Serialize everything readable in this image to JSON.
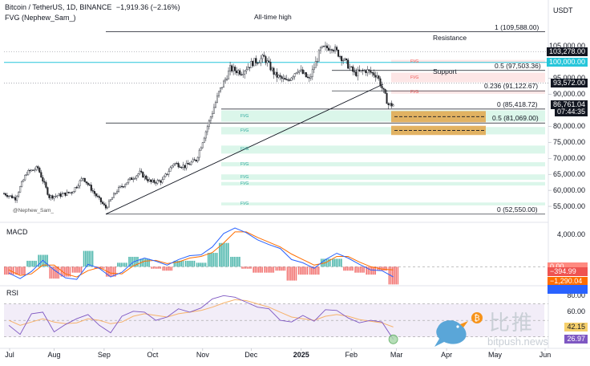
{
  "header": {
    "symbol_line": "Bitcoin / TetherUS, 1D, BINANCE",
    "change": "−1,919.36 (−2.16%)",
    "indicator": "FVG (Nephew_Sam_)",
    "currency": "USDT"
  },
  "colors": {
    "up": "#f2f2f2",
    "down": "#222222",
    "fvg_bull": "#d7f5e8",
    "fvg_bear": "#fde3e3",
    "orange_zone": "#e2a64a",
    "teal_line": "#26c6da",
    "macd_line": "#2962ff",
    "signal_line": "#ff6d00",
    "rsi_line": "#7e57c2",
    "rsi_ma": "#f6b26b"
  },
  "annotations": {
    "ath": "All-time high",
    "resistance": "Resistance",
    "support": "Support",
    "fvg": "FVG",
    "watermark_label": "@Nephew_Sam_"
  },
  "fib_levels": [
    {
      "label": "1 (109,588.00)",
      "price": 109588
    },
    {
      "label": "0.5 (97,503.36)",
      "price": 97503.36
    },
    {
      "label": "0.236 (91,122.67)",
      "price": 91122.67
    },
    {
      "label": "0 (85,418.72)",
      "price": 85418.72
    },
    {
      "label": "0.5 (81,069.00)",
      "price": 81069
    },
    {
      "label": "0 (52,550.00)",
      "price": 52550
    }
  ],
  "price_tags": [
    {
      "text": "103,278.00",
      "price": 103278,
      "bg": "#131722"
    },
    {
      "text": "100,000.00",
      "price": 100000,
      "bg": "#26c6da"
    },
    {
      "text": "93,572.00",
      "price": 93572,
      "bg": "#131722"
    },
    {
      "text": "86,761.04",
      "price": 86761,
      "bg": "#131722"
    },
    {
      "text": "07:44:35",
      "price": 84600,
      "bg": "#131722"
    }
  ],
  "macd_tags": [
    {
      "text": "0.00",
      "bg": "#ff8a80"
    },
    {
      "text": "−394.99",
      "bg": "#ef5350"
    },
    {
      "text": "−1,290.04",
      "bg": "#ff6d00"
    },
    {
      "text": "",
      "bg": "#2962ff"
    }
  ],
  "rsi_tags": [
    {
      "text": "42.15",
      "bg": "#f6d06b",
      "value": 42.15
    },
    {
      "text": "26.97",
      "bg": "#7e57c2",
      "value": 26.97
    }
  ],
  "watermark": {
    "cn": "比推",
    "en": "bitpush.news"
  },
  "chart_data": [
    {
      "type": "candlestick",
      "title": "Bitcoin / TetherUS, 1D, BINANCE",
      "x_ticks": [
        "Jul",
        "Aug",
        "Sep",
        "Oct",
        "Nov",
        "Dec",
        "2025",
        "Feb",
        "Mar",
        "Apr",
        "May",
        "Jun"
      ],
      "y_ticks": [
        "105,000.00",
        "95,000.00",
        "90,000.00",
        "80,000.00",
        "75,000.00",
        "70,000.00",
        "65,000.00",
        "60,000.00",
        "55,000.00"
      ],
      "ylim": [
        51000,
        112000
      ],
      "weekly_close": [
        {
          "date": "2024-07-01",
          "close": 59000
        },
        {
          "date": "2024-07-08",
          "close": 57500
        },
        {
          "date": "2024-07-15",
          "close": 65500
        },
        {
          "date": "2024-07-22",
          "close": 67000
        },
        {
          "date": "2024-07-29",
          "close": 58000
        },
        {
          "date": "2024-08-05",
          "close": 58500
        },
        {
          "date": "2024-08-12",
          "close": 59500
        },
        {
          "date": "2024-08-19",
          "close": 64000
        },
        {
          "date": "2024-08-26",
          "close": 59000
        },
        {
          "date": "2024-09-02",
          "close": 54500
        },
        {
          "date": "2024-09-09",
          "close": 60000
        },
        {
          "date": "2024-09-16",
          "close": 63000
        },
        {
          "date": "2024-09-23",
          "close": 65500
        },
        {
          "date": "2024-09-30",
          "close": 62500
        },
        {
          "date": "2024-10-07",
          "close": 63000
        },
        {
          "date": "2024-10-14",
          "close": 68500
        },
        {
          "date": "2024-10-21",
          "close": 67500
        },
        {
          "date": "2024-10-28",
          "close": 69500
        },
        {
          "date": "2024-11-04",
          "close": 80000
        },
        {
          "date": "2024-11-11",
          "close": 90500
        },
        {
          "date": "2024-11-18",
          "close": 98000
        },
        {
          "date": "2024-11-25",
          "close": 97000
        },
        {
          "date": "2024-12-02",
          "close": 100000
        },
        {
          "date": "2024-12-09",
          "close": 101500
        },
        {
          "date": "2024-12-16",
          "close": 96000
        },
        {
          "date": "2024-12-23",
          "close": 94000
        },
        {
          "date": "2024-12-30",
          "close": 98000
        },
        {
          "date": "2025-01-06",
          "close": 94500
        },
        {
          "date": "2025-01-13",
          "close": 104000
        },
        {
          "date": "2025-01-20",
          "close": 105000
        },
        {
          "date": "2025-01-27",
          "close": 101000
        },
        {
          "date": "2025-02-03",
          "close": 96500
        },
        {
          "date": "2025-02-10",
          "close": 97500
        },
        {
          "date": "2025-02-17",
          "close": 96000
        },
        {
          "date": "2025-02-24",
          "close": 86761
        }
      ],
      "fvg_zones": [
        {
          "type": "bear",
          "from": 99800,
          "to": 100800
        },
        {
          "type": "bear",
          "from": 93800,
          "to": 96800
        },
        {
          "type": "bear",
          "from": 90200,
          "to": 91300
        },
        {
          "type": "bull",
          "from": 81500,
          "to": 85000
        },
        {
          "type": "bull",
          "from": 77500,
          "to": 79800
        },
        {
          "type": "bull",
          "from": 71500,
          "to": 74000
        },
        {
          "type": "bull",
          "from": 67500,
          "to": 68800
        },
        {
          "type": "bull",
          "from": 63300,
          "to": 65000
        },
        {
          "type": "bull",
          "from": 61500,
          "to": 62600
        },
        {
          "type": "bull",
          "from": 55300,
          "to": 56200
        }
      ],
      "orange_zones": [
        {
          "from": 81300,
          "to": 84800
        },
        {
          "from": 77300,
          "to": 80200
        }
      ]
    },
    {
      "type": "line",
      "title": "MACD",
      "y_ticks": [
        "4,000.00",
        "0.00"
      ],
      "ylim": [
        -2200,
        5000
      ],
      "weekly_macd": [
        -800,
        -1500,
        -600,
        800,
        -400,
        -1400,
        -1600,
        300,
        -200,
        -1300,
        -700,
        600,
        1100,
        700,
        200,
        900,
        1400,
        1500,
        2500,
        4200,
        4900,
        4300,
        3400,
        2800,
        2300,
        900,
        500,
        -200,
        900,
        1700,
        1100,
        300,
        -400,
        -500,
        -1290
      ],
      "weekly_signal": [
        -400,
        -1100,
        -900,
        200,
        200,
        -900,
        -1300,
        -500,
        -100,
        -800,
        -900,
        100,
        700,
        800,
        400,
        600,
        1100,
        1300,
        1800,
        3000,
        4400,
        4400,
        3700,
        3100,
        2500,
        1600,
        900,
        200,
        500,
        1300,
        1300,
        600,
        0,
        -300,
        -395
      ]
    },
    {
      "type": "line",
      "title": "RSI",
      "y_ticks": [
        "80.00",
        "60.00"
      ],
      "ylim": [
        20,
        90
      ],
      "weekly_rsi": [
        44,
        33,
        58,
        60,
        36,
        45,
        52,
        57,
        44,
        35,
        55,
        61,
        60,
        50,
        54,
        64,
        60,
        65,
        76,
        80,
        78,
        72,
        66,
        64,
        50,
        48,
        56,
        49,
        63,
        62,
        53,
        47,
        50,
        48,
        27
      ],
      "weekly_rsi_ma": [
        50,
        44,
        48,
        52,
        48,
        46,
        47,
        52,
        50,
        46,
        48,
        55,
        58,
        56,
        54,
        58,
        60,
        62,
        66,
        71,
        75,
        74,
        70,
        66,
        60,
        54,
        52,
        50,
        55,
        57,
        55,
        51,
        49,
        47,
        42
      ]
    }
  ]
}
